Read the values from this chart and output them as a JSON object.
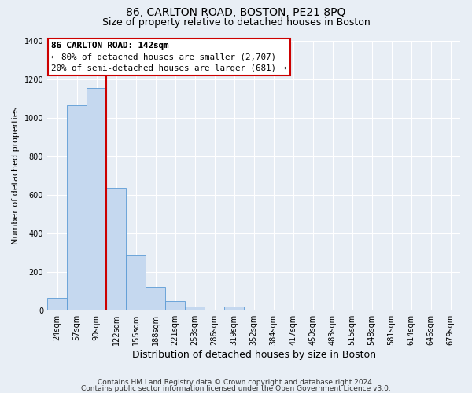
{
  "title": "86, CARLTON ROAD, BOSTON, PE21 8PQ",
  "subtitle": "Size of property relative to detached houses in Boston",
  "xlabel": "Distribution of detached houses by size in Boston",
  "ylabel": "Number of detached properties",
  "categories": [
    "24sqm",
    "57sqm",
    "90sqm",
    "122sqm",
    "155sqm",
    "188sqm",
    "221sqm",
    "253sqm",
    "286sqm",
    "319sqm",
    "352sqm",
    "384sqm",
    "417sqm",
    "450sqm",
    "483sqm",
    "515sqm",
    "548sqm",
    "581sqm",
    "614sqm",
    "646sqm",
    "679sqm"
  ],
  "values": [
    65,
    1065,
    1155,
    635,
    285,
    120,
    47,
    18,
    0,
    18,
    0,
    0,
    0,
    0,
    0,
    0,
    0,
    0,
    0,
    0,
    0
  ],
  "bar_color": "#c5d8ef",
  "bar_edge_color": "#5b9bd5",
  "property_line_x": 2.5,
  "property_line_color": "#cc0000",
  "annotation_title": "86 CARLTON ROAD: 142sqm",
  "annotation_line1": "← 80% of detached houses are smaller (2,707)",
  "annotation_line2": "20% of semi-detached houses are larger (681) →",
  "annotation_box_facecolor": "#ffffff",
  "annotation_box_edgecolor": "#cc0000",
  "ylim": [
    0,
    1400
  ],
  "yticks": [
    0,
    200,
    400,
    600,
    800,
    1000,
    1200,
    1400
  ],
  "footnote1": "Contains HM Land Registry data © Crown copyright and database right 2024.",
  "footnote2": "Contains public sector information licensed under the Open Government Licence v3.0.",
  "background_color": "#e8eef5",
  "grid_color": "#d0d8e4",
  "title_fontsize": 10,
  "subtitle_fontsize": 9,
  "xlabel_fontsize": 9,
  "ylabel_fontsize": 8,
  "tick_fontsize": 7,
  "footnote_fontsize": 6.5
}
